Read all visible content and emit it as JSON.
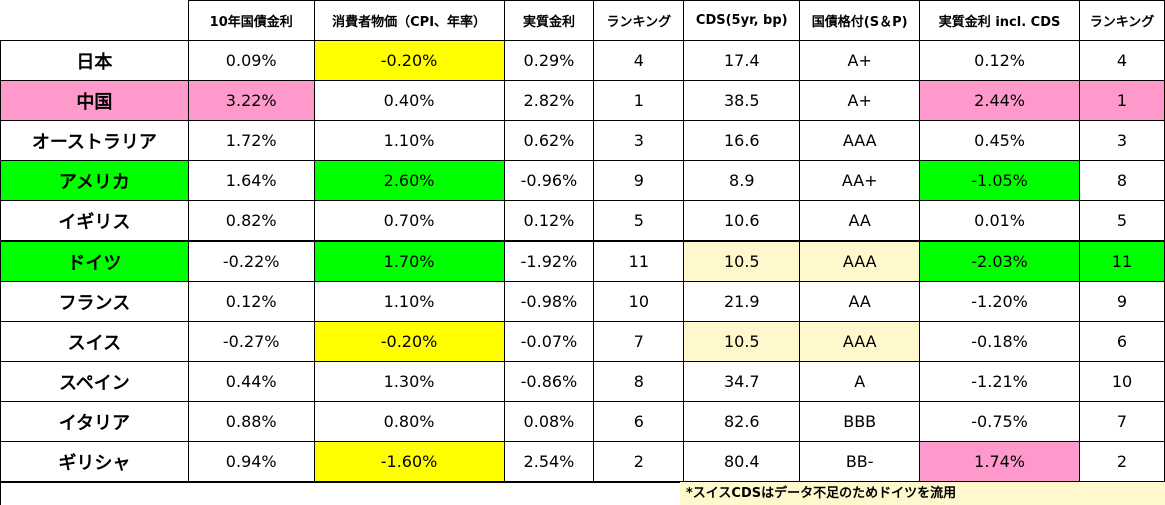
{
  "headers": [
    "",
    "10年国債金利",
    "消費者物価（CPI、年率）",
    "実質金利",
    "ランキング",
    "CDS(5yr, bp)",
    "国債格付(S＆P)",
    "実質金利 incl. CDS",
    "ランキング"
  ],
  "rows": [
    [
      "日本",
      "0.09%",
      "-0.20%",
      "0.29%",
      "4",
      "17.4",
      "A+",
      "0.12%",
      "4"
    ],
    [
      "中国",
      "3.22%",
      "0.40%",
      "2.82%",
      "1",
      "38.5",
      "A+",
      "2.44%",
      "1"
    ],
    [
      "オーストラリア",
      "1.72%",
      "1.10%",
      "0.62%",
      "3",
      "16.6",
      "AAA",
      "0.45%",
      "3"
    ],
    [
      "アメリカ",
      "1.64%",
      "2.60%",
      "-0.96%",
      "9",
      "8.9",
      "AA+",
      "-1.05%",
      "8"
    ],
    [
      "イギリス",
      "0.82%",
      "0.70%",
      "0.12%",
      "5",
      "10.6",
      "AA",
      "0.01%",
      "5"
    ],
    [
      "ドイツ",
      "-0.22%",
      "1.70%",
      "-1.92%",
      "11",
      "10.5",
      "AAA",
      "-2.03%",
      "11"
    ],
    [
      "フランス",
      "0.12%",
      "1.10%",
      "-0.98%",
      "10",
      "21.9",
      "AA",
      "-1.20%",
      "9"
    ],
    [
      "スイス",
      "-0.27%",
      "-0.20%",
      "-0.07%",
      "7",
      "10.5",
      "AAA",
      "-0.18%",
      "6"
    ],
    [
      "スペイン",
      "0.44%",
      "1.30%",
      "-0.86%",
      "8",
      "34.7",
      "A",
      "-1.21%",
      "10"
    ],
    [
      "イタリア",
      "0.88%",
      "0.80%",
      "0.08%",
      "6",
      "82.6",
      "BBB",
      "-0.75%",
      "7"
    ],
    [
      "ギリシャ",
      "0.94%",
      "-1.60%",
      "2.54%",
      "2",
      "80.4",
      "BB-",
      "1.74%",
      "2"
    ]
  ],
  "highlights": {
    "yellow": "#ffff00",
    "green": "#00ff00",
    "pink": "#ff99cc",
    "cream": "#fff8cc"
  },
  "footnote": "*スイスCDSはデータ不足のためドイツを流用"
}
